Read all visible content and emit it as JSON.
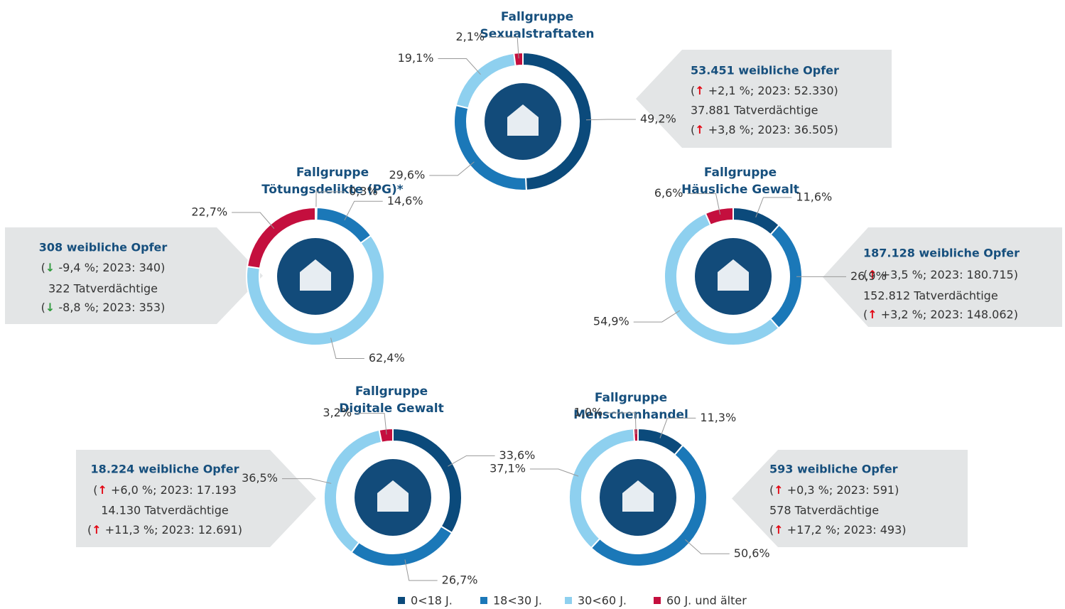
{
  "legend": {
    "labels": [
      "0<18 J.",
      "18<30 J.",
      "30<60 J.",
      "60 J. und älter"
    ],
    "colors": [
      "#0b4a7b",
      "#1b78b8",
      "#8ed0ef",
      "#c40f3e"
    ]
  },
  "chart_data": [
    {
      "type": "donut",
      "title": [
        "Fallgruppe",
        "Sexualstraftaten"
      ],
      "values": [
        49.2,
        29.6,
        19.1,
        2.1
      ],
      "value_labels": [
        "49,2%",
        "29,6%",
        "19,1%",
        "2,1%"
      ],
      "info": [
        "53.451 weibliche Opfer",
        [
          "(",
          "↑",
          " +2,1 %; 2023: 52.330)"
        ],
        "37.881 Tatverdächtige",
        [
          "(",
          "↑",
          " +3,8 %; 2023: 36.505)"
        ]
      ],
      "arrow_color": "#e30613"
    },
    {
      "type": "donut",
      "title": [
        "Fallgruppe",
        "Tötungsdelikte (PG)*"
      ],
      "values": [
        0.3,
        14.6,
        62.4,
        22.7
      ],
      "value_labels": [
        "0,3%",
        "14,6%",
        "62,4%",
        "22,7%"
      ],
      "info": [
        "308 weibliche Opfer",
        [
          "(",
          "↓",
          " -9,4 %; 2023: 340)"
        ],
        "322 Tatverdächtige",
        [
          "(",
          "↓",
          " -8,8 %; 2023: 353)"
        ]
      ],
      "arrow_color": "#2e9a3c"
    },
    {
      "type": "donut",
      "title": [
        "Fallgruppe",
        "Häusliche Gewalt"
      ],
      "values": [
        11.6,
        26.9,
        54.9,
        6.6
      ],
      "value_labels": [
        "11,6%",
        "26,9%",
        "54,9%",
        "6,6%"
      ],
      "info": [
        "187.128 weibliche Opfer",
        [
          "(",
          "↑",
          " +3,5 %; 2023: 180.715)"
        ],
        "152.812 Tatverdächtige",
        [
          "(",
          "↑",
          " +3,2 %; 2023: 148.062)"
        ]
      ],
      "arrow_color": "#e30613"
    },
    {
      "type": "donut",
      "title": [
        "Fallgruppe",
        "Digitale Gewalt"
      ],
      "values": [
        33.6,
        26.7,
        36.5,
        3.2
      ],
      "value_labels": [
        "33,6%",
        "26,7%",
        "36,5%",
        "3,2%"
      ],
      "info": [
        "18.224 weibliche Opfer",
        [
          "(",
          "↑",
          " +6,0 %; 2023: 17.193"
        ],
        "14.130 Tatverdächtige",
        [
          "(",
          "↑",
          " +11,3 %; 2023: 12.691)"
        ]
      ],
      "arrow_color": "#e30613"
    },
    {
      "type": "donut",
      "title": [
        "Fallgruppe",
        "Menschenhandel"
      ],
      "values": [
        11.3,
        50.6,
        37.1,
        1.0
      ],
      "value_labels": [
        "11,3%",
        "50,6%",
        "37,1%",
        "1,0%"
      ],
      "info": [
        "593 weibliche Opfer",
        [
          "(",
          "↑",
          " +0,3 %; 2023: 591)"
        ],
        "578 Tatverdächtige",
        [
          "(",
          "↑",
          " +17,2 %; 2023: 493)"
        ]
      ],
      "arrow_color": "#e30613"
    }
  ]
}
